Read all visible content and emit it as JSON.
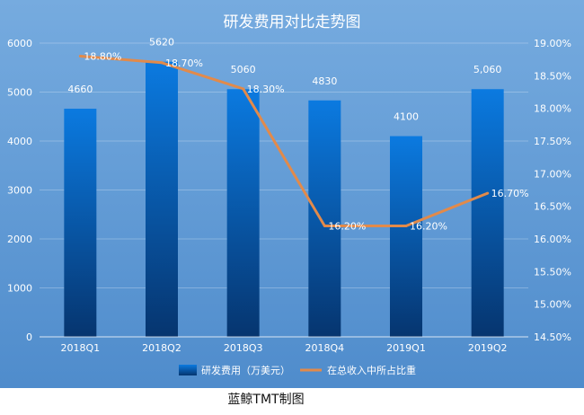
{
  "chart_data": {
    "type": "bar",
    "title": "研发费用对比走势图",
    "categories": [
      "2018Q1",
      "2018Q2",
      "2018Q3",
      "2018Q4",
      "2019Q1",
      "2019Q2"
    ],
    "series": [
      {
        "name": "研发费用（万美元）",
        "type": "bar",
        "axis": "left",
        "values": [
          4660,
          5620,
          5060,
          4830,
          4100,
          5060
        ],
        "labels": [
          "4660",
          "5620",
          "5060",
          "4830",
          "4100",
          "5,060"
        ]
      },
      {
        "name": "在总收入中所占比重",
        "type": "line",
        "axis": "right",
        "values": [
          18.8,
          18.7,
          18.3,
          16.2,
          16.2,
          16.7
        ],
        "labels": [
          "18.80%",
          "18.70%",
          "18.30%",
          "16.20%",
          "16.20%",
          "16.70%"
        ]
      }
    ],
    "y_left": {
      "ylim": [
        0,
        6000
      ],
      "ticks": [
        "0",
        "1000",
        "2000",
        "3000",
        "4000",
        "5000",
        "6000"
      ]
    },
    "y_right": {
      "ylim": [
        14.5,
        19.0
      ],
      "ticks": [
        "14.50%",
        "15.00%",
        "15.50%",
        "16.00%",
        "16.50%",
        "17.00%",
        "17.50%",
        "18.00%",
        "18.50%",
        "19.00%"
      ]
    },
    "grid": true,
    "legend": "bottom"
  },
  "colors": {
    "background_top": "#72a8dc",
    "background_bottom": "#4f8ccc",
    "bar_top": "#0b7ae0",
    "bar_bottom": "#06356f",
    "line": "#e28a4a",
    "text": "#ffffff"
  },
  "footer": {
    "caption": "蓝鲸TMT制图"
  }
}
